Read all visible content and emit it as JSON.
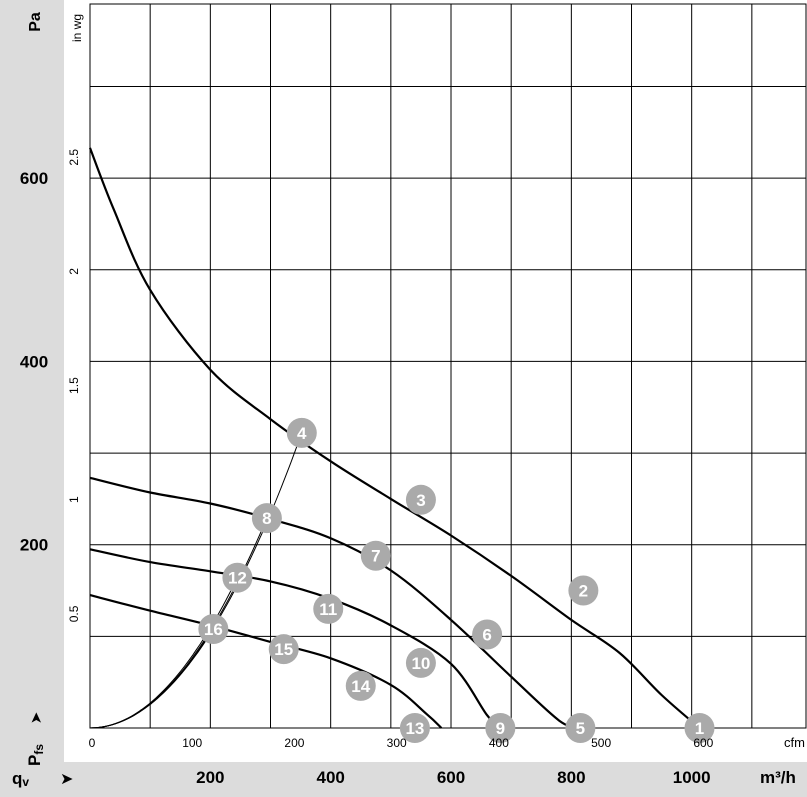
{
  "chart_data": {
    "type": "line",
    "title": "",
    "units": {
      "pressure_si": "Pa",
      "pressure_imperial": "in wg",
      "flow_si": "m³/h",
      "flow_imperial": "cfm"
    },
    "axis_labels": {
      "y_symbol": "P",
      "y_subscript": "fs",
      "y_arrow": "➤",
      "x_symbol": "q",
      "x_subscript": "v",
      "x_arrow": "➤"
    },
    "x_m3h_ticks": [
      "200",
      "400",
      "600",
      "800",
      "1000"
    ],
    "x_cfm_ticks": [
      "0",
      "100",
      "200",
      "300",
      "400",
      "500",
      "600"
    ],
    "y_pa_ticks": [
      "200",
      "400",
      "600"
    ],
    "y_inwg_ticks": [
      "0.5",
      "1",
      "1.5",
      "2",
      "2.5"
    ],
    "xlim_m3h": [
      0,
      1190
    ],
    "ylim_pa": [
      0,
      790
    ],
    "grid": true,
    "curve_color": "#000000",
    "operating_line_color": "#000000",
    "marker_color": "#aaaaaa",
    "axis_band_color": "#dcdcdc",
    "series": [
      {
        "x": [
          0,
          40,
          100,
          200,
          300,
          400,
          500,
          600,
          700,
          800,
          880,
          950,
          1013
        ],
        "y": [
          633,
          565,
          478,
          391,
          337,
          291,
          250,
          210,
          166,
          118,
          82,
          36,
          0
        ]
      },
      {
        "x": [
          0,
          100,
          200,
          300,
          400,
          500,
          600,
          700,
          780,
          815
        ],
        "y": [
          273,
          257,
          245,
          228,
          207,
          172,
          118,
          56,
          8,
          0
        ]
      },
      {
        "x": [
          0,
          100,
          200,
          300,
          400,
          500,
          600,
          660,
          682
        ],
        "y": [
          195,
          181,
          171,
          160,
          141,
          112,
          70,
          14,
          0
        ]
      },
      {
        "x": [
          0,
          100,
          200,
          300,
          400,
          500,
          560,
          584
        ],
        "y": [
          145,
          128,
          112,
          94,
          76,
          47,
          15,
          0
        ]
      }
    ],
    "operating_points": [
      {
        "label": "1",
        "x": 1013,
        "y": 0
      },
      {
        "label": "2",
        "x": 820,
        "y": 150
      },
      {
        "label": "3",
        "x": 550,
        "y": 249
      },
      {
        "label": "4",
        "x": 352,
        "y": 322
      },
      {
        "label": "5",
        "x": 815,
        "y": 0
      },
      {
        "label": "6",
        "x": 660,
        "y": 102
      },
      {
        "label": "7",
        "x": 475,
        "y": 188
      },
      {
        "label": "8",
        "x": 294,
        "y": 229
      },
      {
        "label": "9",
        "x": 682,
        "y": 0
      },
      {
        "label": "10",
        "x": 550,
        "y": 71
      },
      {
        "label": "11",
        "x": 396,
        "y": 130
      },
      {
        "label": "12",
        "x": 245,
        "y": 164
      },
      {
        "label": "13",
        "x": 540,
        "y": 0
      },
      {
        "label": "14",
        "x": 450,
        "y": 46
      },
      {
        "label": "15",
        "x": 322,
        "y": 86
      },
      {
        "label": "16",
        "x": 205,
        "y": 108
      }
    ],
    "operating_lines": [
      {
        "label_points": [
          "1",
          "2",
          "3",
          "4"
        ]
      },
      {
        "label_points": [
          "6",
          "7",
          "8"
        ]
      },
      {
        "label_points": [
          "10",
          "11",
          "12"
        ]
      },
      {
        "label_points": [
          "14",
          "15",
          "16"
        ]
      }
    ]
  }
}
